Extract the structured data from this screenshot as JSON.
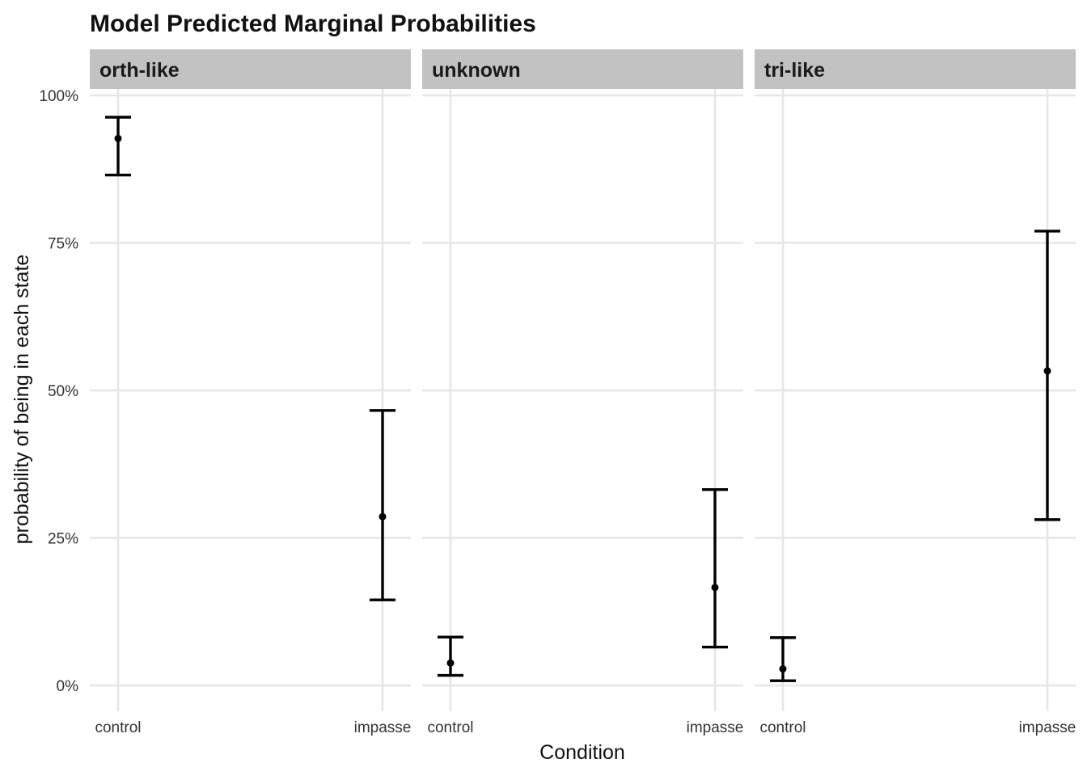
{
  "chart_data": {
    "type": "errorbar",
    "title": "Model Predicted Marginal Probabilities",
    "xlabel": "Condition",
    "ylabel": "probability of being in each state",
    "categories": [
      "control",
      "impasse"
    ],
    "y_ticks": [
      "0%",
      "25%",
      "50%",
      "75%",
      "100%"
    ],
    "ylim": [
      0,
      1
    ],
    "grid": true,
    "legend": "none",
    "colors": {
      "point": "#000000",
      "grid": "#e6e6e6",
      "strip": "#c2c2c2"
    },
    "panels": [
      {
        "name": "orth-like",
        "points": [
          {
            "x": "control",
            "y": 0.927,
            "lower": 0.865,
            "upper": 0.963
          },
          {
            "x": "impasse",
            "y": 0.286,
            "lower": 0.145,
            "upper": 0.466
          }
        ]
      },
      {
        "name": "unknown",
        "points": [
          {
            "x": "control",
            "y": 0.038,
            "lower": 0.017,
            "upper": 0.082
          },
          {
            "x": "impasse",
            "y": 0.166,
            "lower": 0.065,
            "upper": 0.332
          }
        ]
      },
      {
        "name": "tri-like",
        "points": [
          {
            "x": "control",
            "y": 0.028,
            "lower": 0.008,
            "upper": 0.081
          },
          {
            "x": "impasse",
            "y": 0.533,
            "lower": 0.281,
            "upper": 0.77
          }
        ]
      }
    ]
  }
}
